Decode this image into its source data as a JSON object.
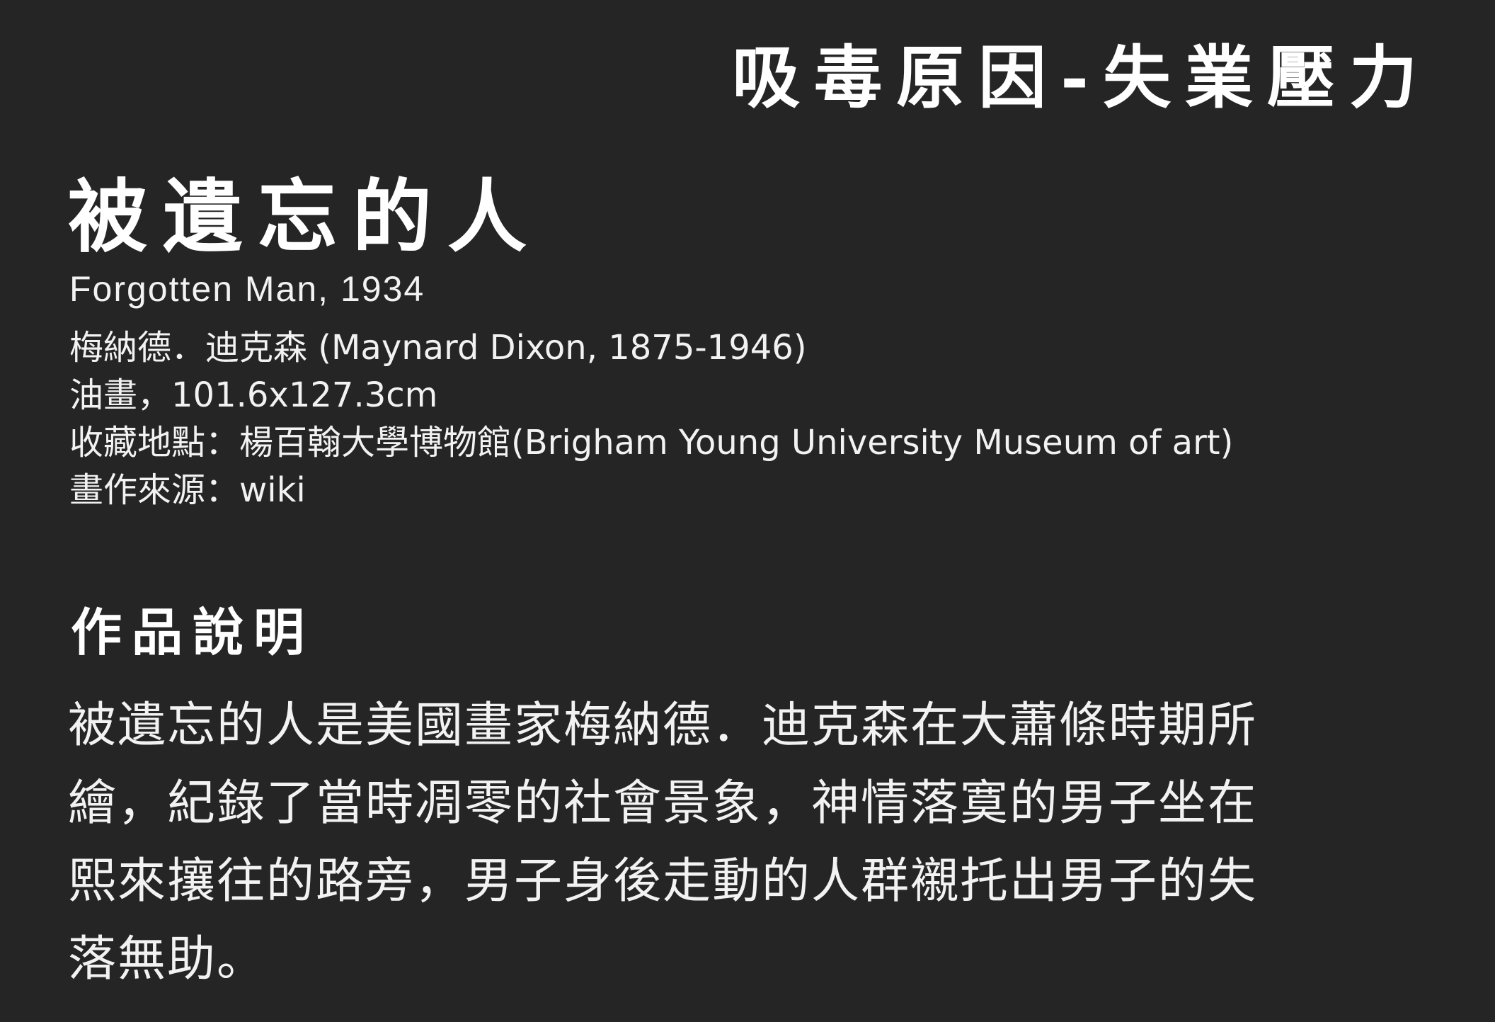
{
  "header": {
    "section_title": "吸毒原因-失業壓力"
  },
  "artwork": {
    "title": "被遺忘的人",
    "subtitle": "Forgotten Man, 1934",
    "artist": "梅納德．迪克森 (Maynard Dixon, 1875-1946)",
    "medium": "油畫，101.6x127.3cm",
    "collection": "收藏地點：楊百翰大學博物館(Brigham Young University Museum of art)",
    "source": "畫作來源：wiki"
  },
  "description": {
    "heading": "作品說明",
    "lines": [
      "被遺忘的人是美國畫家梅納德．迪克森在大蕭條時期所",
      "繪，紀錄了當時凋零的社會景象，神情落寞的男子坐在",
      "熙來攘往的路旁，男子身後走動的人群襯托出男子的失",
      "落無助。"
    ]
  }
}
